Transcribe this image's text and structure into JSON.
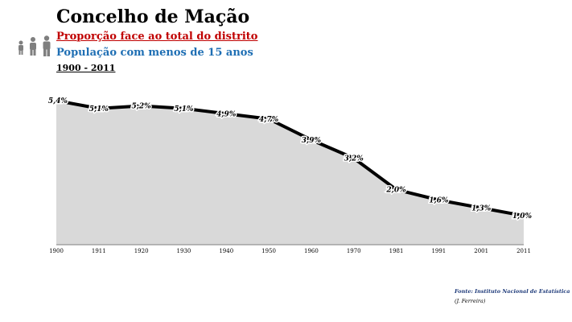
{
  "header": {
    "title": "Concelho de Mação",
    "subtitle1": "Proporção face ao total do distrito",
    "subtitle2": "População com menos de 15 anos",
    "period": "1900 - 2011"
  },
  "footer": {
    "source": "Fonte: Instituto Nacional de Estatística",
    "author": "(J. Ferreira)"
  },
  "icons": [
    "children-family-icon"
  ],
  "colors": {
    "area_fill": "#d9d9d9",
    "line": "#000000",
    "subtitle1": "#c00000",
    "subtitle2": "#1f6fb4"
  },
  "chart_data": {
    "type": "area",
    "x": [
      "1900",
      "1911",
      "1920",
      "1930",
      "1940",
      "1950",
      "1960",
      "1970",
      "1981",
      "1991",
      "2001",
      "2011"
    ],
    "values": [
      5.4,
      5.1,
      5.2,
      5.1,
      4.9,
      4.7,
      3.9,
      3.2,
      2.0,
      1.6,
      1.3,
      1.0
    ],
    "data_labels": [
      "5,4%",
      "5,1%",
      "5,2%",
      "5,1%",
      "4,9%",
      "4,7%",
      "3,9%",
      "3,2%",
      "2,0%",
      "1,6%",
      "1,3%",
      "1,0%"
    ],
    "title": "Concelho de Mação",
    "xlabel": "",
    "ylabel": "",
    "ylim": [
      0,
      6
    ],
    "grid": false
  }
}
